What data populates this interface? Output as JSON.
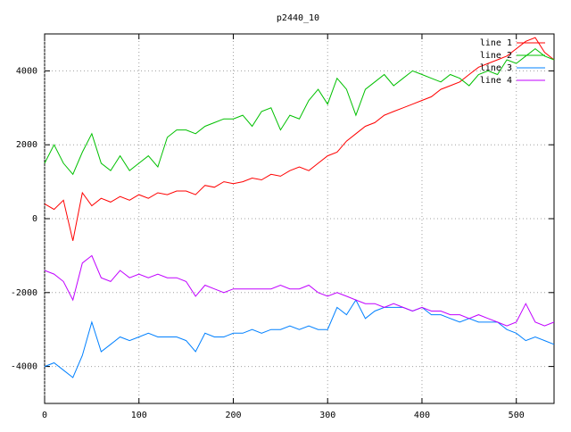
{
  "chart_data": {
    "type": "line",
    "title": "p2440_10",
    "x": [
      0,
      10,
      20,
      30,
      40,
      50,
      60,
      70,
      80,
      90,
      100,
      110,
      120,
      130,
      140,
      150,
      160,
      170,
      180,
      190,
      200,
      210,
      220,
      230,
      240,
      250,
      260,
      270,
      280,
      290,
      300,
      310,
      320,
      330,
      340,
      350,
      360,
      370,
      380,
      390,
      400,
      410,
      420,
      430,
      440,
      450,
      460,
      470,
      480,
      490,
      500,
      510,
      520,
      530,
      540
    ],
    "series": [
      {
        "name": "line 1",
        "color": "#ff0000",
        "values": [
          400,
          250,
          500,
          -600,
          700,
          350,
          550,
          450,
          600,
          500,
          650,
          550,
          700,
          650,
          750,
          750,
          650,
          900,
          850,
          1000,
          950,
          1000,
          1100,
          1050,
          1200,
          1150,
          1300,
          1400,
          1300,
          1500,
          1700,
          1800,
          2100,
          2300,
          2500,
          2600,
          2800,
          2900,
          3000,
          3100,
          3200,
          3300,
          3500,
          3600,
          3700,
          3900,
          4100,
          4200,
          4300,
          4400,
          4600,
          4800,
          4900,
          4500,
          4300
        ]
      },
      {
        "name": "line 2",
        "color": "#00c000",
        "values": [
          1500,
          2000,
          1500,
          1200,
          1800,
          2300,
          1500,
          1300,
          1700,
          1300,
          1500,
          1700,
          1400,
          2200,
          2400,
          2400,
          2300,
          2500,
          2600,
          2700,
          2700,
          2800,
          2500,
          2900,
          3000,
          2400,
          2800,
          2700,
          3200,
          3500,
          3100,
          3800,
          3500,
          2800,
          3500,
          3700,
          3900,
          3600,
          3800,
          4000,
          3900,
          3800,
          3700,
          3900,
          3800,
          3600,
          3900,
          4000,
          3900,
          4300,
          4200,
          4400,
          4600,
          4400,
          4300
        ]
      },
      {
        "name": "line 3",
        "color": "#0080ff",
        "values": [
          -4000,
          -3900,
          -4100,
          -4300,
          -3700,
          -2800,
          -3600,
          -3400,
          -3200,
          -3300,
          -3200,
          -3100,
          -3200,
          -3200,
          -3200,
          -3300,
          -3600,
          -3100,
          -3200,
          -3200,
          -3100,
          -3100,
          -3000,
          -3100,
          -3000,
          -3000,
          -2900,
          -3000,
          -2900,
          -3000,
          -3000,
          -2400,
          -2600,
          -2200,
          -2700,
          -2500,
          -2400,
          -2400,
          -2400,
          -2500,
          -2400,
          -2600,
          -2600,
          -2700,
          -2800,
          -2700,
          -2800,
          -2800,
          -2800,
          -3000,
          -3100,
          -3300,
          -3200,
          -3300,
          -3400
        ]
      },
      {
        "name": "line 4",
        "color": "#c000ff",
        "values": [
          -1400,
          -1500,
          -1700,
          -2200,
          -1200,
          -1000,
          -1600,
          -1700,
          -1400,
          -1600,
          -1500,
          -1600,
          -1500,
          -1600,
          -1600,
          -1700,
          -2100,
          -1800,
          -1900,
          -2000,
          -1900,
          -1900,
          -1900,
          -1900,
          -1900,
          -1800,
          -1900,
          -1900,
          -1800,
          -2000,
          -2100,
          -2000,
          -2100,
          -2200,
          -2300,
          -2300,
          -2400,
          -2300,
          -2400,
          -2500,
          -2400,
          -2500,
          -2500,
          -2600,
          -2600,
          -2700,
          -2600,
          -2700,
          -2800,
          -2900,
          -2800,
          -2300,
          -2800,
          -2900,
          -2800
        ]
      }
    ],
    "xlim": [
      0,
      540
    ],
    "ylim": [
      -5000,
      5000
    ],
    "xticks": [
      0,
      100,
      200,
      300,
      400,
      500
    ],
    "yticks": [
      -4000,
      -2000,
      0,
      2000,
      4000
    ],
    "grid": true,
    "legend": "top-right"
  }
}
